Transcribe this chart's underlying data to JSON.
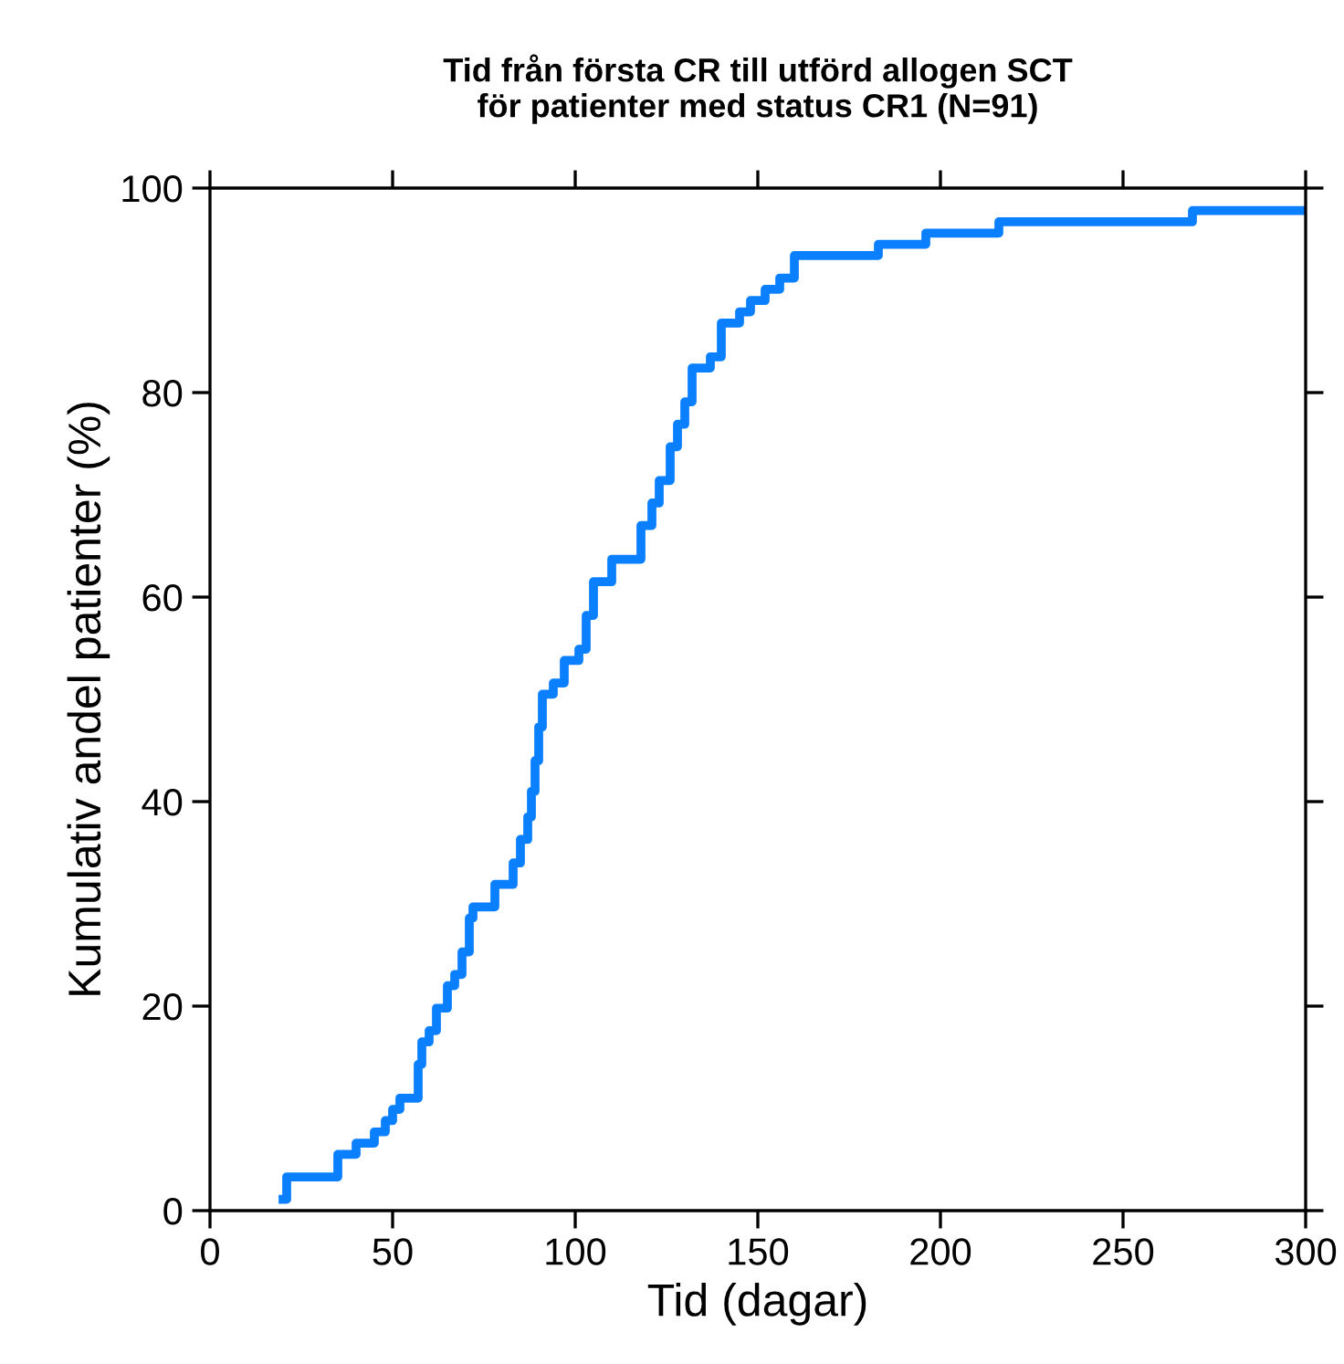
{
  "chart_data": {
    "type": "step",
    "title": "Tid från första CR till utförd allogen SCT\nför patienter med status CR1 (N=91)",
    "xlabel": "Tid (dagar)",
    "ylabel": "Kumulativ andel patienter (%)",
    "xlim": [
      0,
      300
    ],
    "ylim": [
      0,
      100
    ],
    "xticks": [
      0,
      50,
      100,
      150,
      200,
      250,
      300
    ],
    "yticks": [
      0,
      20,
      40,
      60,
      80,
      100
    ],
    "grid": false,
    "series": [
      {
        "color": "#0a7fff",
        "x": [
          20,
          21,
          35,
          40,
          45,
          48,
          50,
          52,
          57,
          58,
          60,
          62,
          65,
          67,
          69,
          71,
          72,
          78,
          83,
          85,
          87,
          88,
          89,
          90,
          91,
          94,
          97,
          101,
          103,
          105,
          110,
          118,
          121,
          123,
          126,
          128,
          130,
          132,
          137,
          140,
          145,
          148,
          152,
          156,
          160,
          183,
          196,
          216,
          269,
          300
        ],
        "values": [
          1.1,
          3.3,
          5.5,
          6.6,
          7.7,
          8.8,
          9.9,
          11,
          14.3,
          16.5,
          17.6,
          19.8,
          22,
          23.1,
          25.3,
          28.6,
          29.7,
          31.9,
          34,
          36.3,
          38.5,
          41,
          44,
          47.3,
          50.5,
          51.6,
          53.8,
          54.9,
          58.2,
          61.5,
          63.7,
          67,
          69.2,
          71.4,
          74.7,
          76.9,
          79.1,
          82.4,
          83.5,
          86.8,
          87.9,
          89,
          90.1,
          91.2,
          93.4,
          94.5,
          95.6,
          96.7,
          97.8,
          97.8
        ]
      }
    ]
  }
}
